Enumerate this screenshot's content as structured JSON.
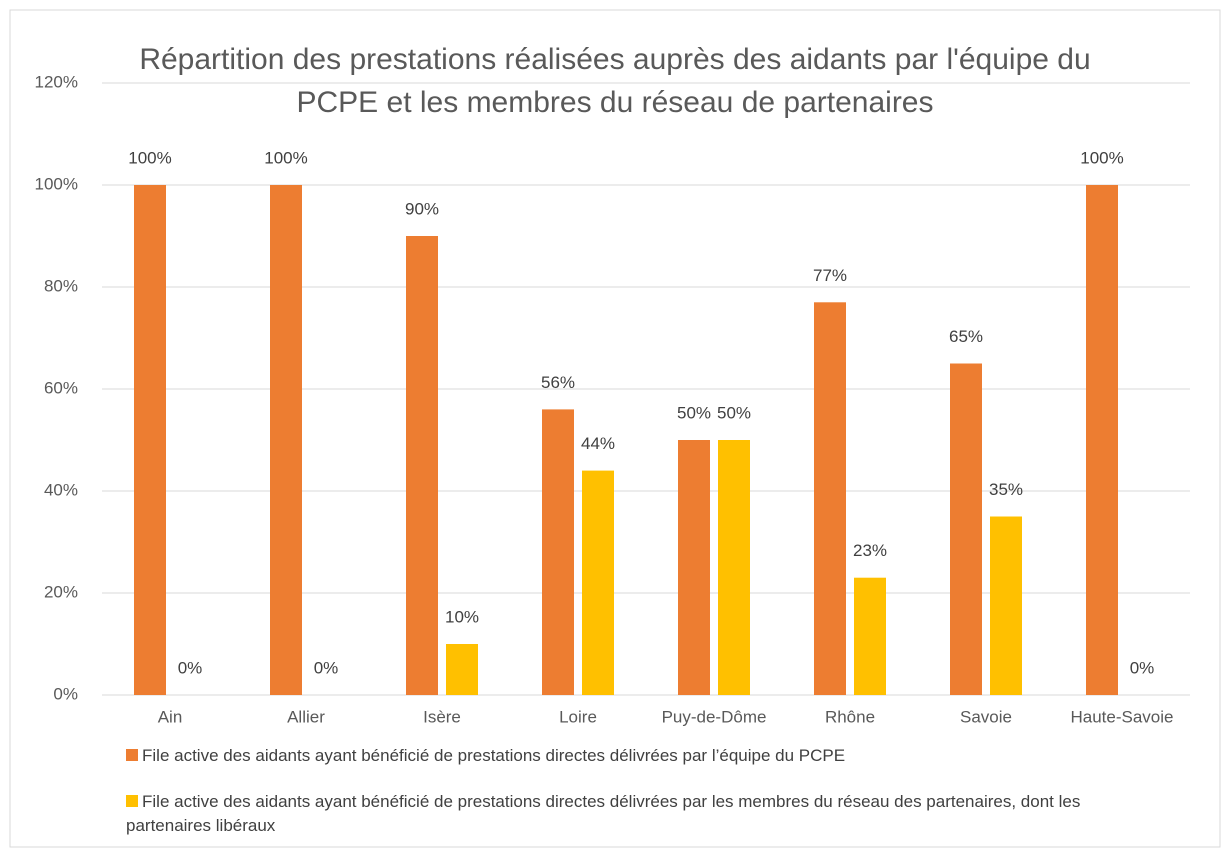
{
  "chart_data": {
    "type": "bar",
    "title": "Répartition des prestations réalisées auprès des aidants par l'équipe du PCPE et les membres du réseau de partenaires",
    "categories": [
      "Ain",
      "Allier",
      "Isère",
      "Loire",
      "Puy-de-Dôme",
      "Rhône",
      "Savoie",
      "Haute-Savoie"
    ],
    "series": [
      {
        "name": "File active des aidants ayant bénéficié de prestations directes délivrées par l’équipe du PCPE",
        "color": "#ED7D31",
        "values": [
          100,
          100,
          90,
          56,
          50,
          77,
          65,
          100
        ],
        "value_labels": [
          "100%",
          "100%",
          "90%",
          "56%",
          "50%",
          "77%",
          "65%",
          "100%"
        ]
      },
      {
        "name": "File active des aidants ayant bénéficié de prestations directes délivrées par les membres du réseau des partenaires, dont les partenaires libéraux",
        "color": "#FFC000",
        "values": [
          0,
          0,
          10,
          44,
          50,
          23,
          35,
          0
        ],
        "value_labels": [
          "0%",
          "0%",
          "10%",
          "44%",
          "50%",
          "23%",
          "35%",
          "0%"
        ]
      }
    ],
    "ylim": [
      0,
      120
    ],
    "yticks": [
      {
        "value": 0,
        "label": "0%"
      },
      {
        "value": 20,
        "label": "20%"
      },
      {
        "value": 40,
        "label": "40%"
      },
      {
        "value": 60,
        "label": "60%"
      },
      {
        "value": 80,
        "label": "80%"
      },
      {
        "value": 100,
        "label": "100%"
      },
      {
        "value": 120,
        "label": "120%"
      }
    ],
    "grid": true
  }
}
